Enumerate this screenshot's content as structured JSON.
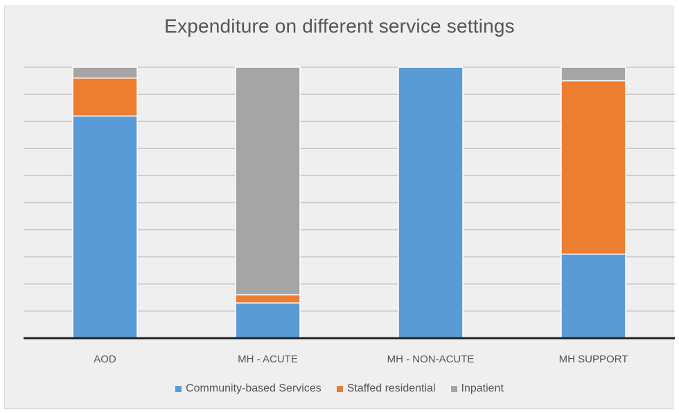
{
  "chart_data": {
    "type": "bar",
    "stacked": true,
    "title": "Expenditure on different service settings",
    "xlabel": "",
    "ylabel": "",
    "ylim": [
      0,
      100
    ],
    "grid": true,
    "legend_position": "bottom",
    "categories": [
      "AOD",
      "MH - ACUTE",
      "MH - NON-ACUTE",
      "MH SUPPORT"
    ],
    "series": [
      {
        "name": "Community-based Services",
        "color": "#5b9bd5",
        "values": [
          82,
          13,
          100,
          31
        ]
      },
      {
        "name": "Staffed residential",
        "color": "#ed7d31",
        "values": [
          14,
          3,
          0,
          64
        ]
      },
      {
        "name": "Inpatient",
        "color": "#a5a5a5",
        "values": [
          4,
          84,
          0,
          5
        ]
      }
    ]
  }
}
